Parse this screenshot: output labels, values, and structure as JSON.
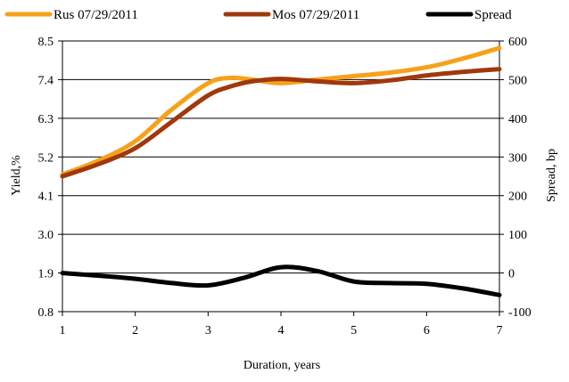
{
  "chart_data": {
    "type": "line",
    "title": "",
    "xlabel": "Duration, years",
    "ylabel_left": "Yield,%",
    "ylabel_right": "Spread, bp",
    "x_ticks": [
      "1",
      "2",
      "3",
      "4",
      "5",
      "6",
      "7"
    ],
    "y_left_ticks": [
      "8.5",
      "7.4",
      "6.3",
      "5.2",
      "4.1",
      "3.0",
      "1.9",
      "0.8"
    ],
    "y_right_ticks": [
      "600",
      "500",
      "400",
      "300",
      "200",
      "100",
      "0",
      "-100"
    ],
    "xlim": [
      1,
      7
    ],
    "ylim_left": [
      0.8,
      8.5
    ],
    "ylim_right": [
      -100,
      600
    ],
    "grid": "horizontal",
    "legend_position": "top",
    "series": [
      {
        "name": "Rus 07/29/2011",
        "axis": "left",
        "color": "#F7A11A",
        "x": [
          1,
          1.5,
          2,
          2.5,
          3,
          3.3,
          3.6,
          4,
          4.5,
          5,
          5.5,
          6,
          6.5,
          7
        ],
        "values": [
          4.7,
          5.1,
          5.65,
          6.55,
          7.3,
          7.45,
          7.4,
          7.3,
          7.4,
          7.5,
          7.6,
          7.75,
          8.0,
          8.3
        ]
      },
      {
        "name": "Mos 07/29/2011",
        "axis": "left",
        "color": "#A0380C",
        "x": [
          1,
          1.5,
          2,
          2.5,
          3,
          3.3,
          3.6,
          4,
          4.5,
          5,
          5.5,
          6,
          6.5,
          7
        ],
        "values": [
          4.65,
          5.0,
          5.45,
          6.2,
          6.95,
          7.2,
          7.35,
          7.42,
          7.35,
          7.3,
          7.38,
          7.52,
          7.62,
          7.7
        ]
      },
      {
        "name": "Spread",
        "axis": "right",
        "color": "#000000",
        "x": [
          1,
          1.5,
          2,
          2.5,
          3,
          3.5,
          4,
          4.5,
          5,
          5.5,
          6,
          6.5,
          7
        ],
        "values": [
          0,
          -7,
          -15,
          -26,
          -32,
          -12,
          15,
          5,
          -22,
          -26,
          -28,
          -40,
          -57
        ]
      }
    ]
  }
}
